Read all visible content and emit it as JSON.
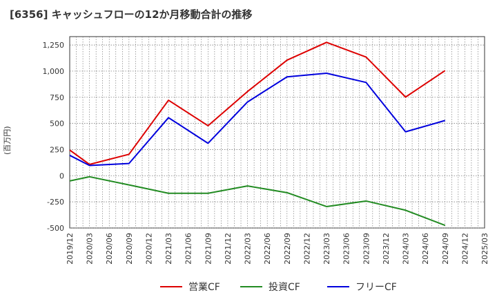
{
  "chart_data": {
    "type": "line",
    "title": "[6356]  キャッシュフローの12か月移動合計の推移",
    "ylabel": "(百万円)",
    "xlabel": "",
    "ylim": [
      -500,
      1330
    ],
    "yticks": [
      -500,
      -250,
      0,
      250,
      500,
      750,
      1000,
      1250
    ],
    "ytick_labels": [
      "-500",
      "-250",
      "0",
      "250",
      "500",
      "750",
      "1,000",
      "1,250"
    ],
    "x_ticks": [
      "2019/12",
      "2020/03",
      "2020/06",
      "2020/09",
      "2020/12",
      "2021/03",
      "2021/06",
      "2021/09",
      "2021/12",
      "2022/03",
      "2022/06",
      "2022/09",
      "2022/12",
      "2023/03",
      "2023/06",
      "2023/09",
      "2023/12",
      "2024/03",
      "2024/06",
      "2024/09",
      "2024/12",
      "2025/03"
    ],
    "grid": true,
    "legend_position": "bottom",
    "series": [
      {
        "name": "営業CF",
        "color": "#dd0000",
        "points": [
          [
            "2019/12",
            245
          ],
          [
            "2020/03",
            108
          ],
          [
            "2020/09",
            205
          ],
          [
            "2021/03",
            722
          ],
          [
            "2021/09",
            478
          ],
          [
            "2022/03",
            805
          ],
          [
            "2022/09",
            1105
          ],
          [
            "2023/03",
            1275
          ],
          [
            "2023/09",
            1135
          ],
          [
            "2024/03",
            752
          ],
          [
            "2024/09",
            1005
          ]
        ]
      },
      {
        "name": "投資CF",
        "color": "#228b22",
        "points": [
          [
            "2019/12",
            -50
          ],
          [
            "2020/03",
            -10
          ],
          [
            "2020/09",
            -88
          ],
          [
            "2021/03",
            -168
          ],
          [
            "2021/09",
            -168
          ],
          [
            "2022/03",
            -98
          ],
          [
            "2022/09",
            -162
          ],
          [
            "2023/03",
            -295
          ],
          [
            "2023/09",
            -242
          ],
          [
            "2024/03",
            -330
          ],
          [
            "2024/09",
            -475
          ]
        ]
      },
      {
        "name": "フリーCF",
        "color": "#0000dd",
        "points": [
          [
            "2019/12",
            195
          ],
          [
            "2020/03",
            98
          ],
          [
            "2020/09",
            117
          ],
          [
            "2021/03",
            555
          ],
          [
            "2021/09",
            310
          ],
          [
            "2022/03",
            705
          ],
          [
            "2022/09",
            945
          ],
          [
            "2023/03",
            980
          ],
          [
            "2023/09",
            892
          ],
          [
            "2024/03",
            420
          ],
          [
            "2024/09",
            528
          ]
        ]
      }
    ]
  }
}
